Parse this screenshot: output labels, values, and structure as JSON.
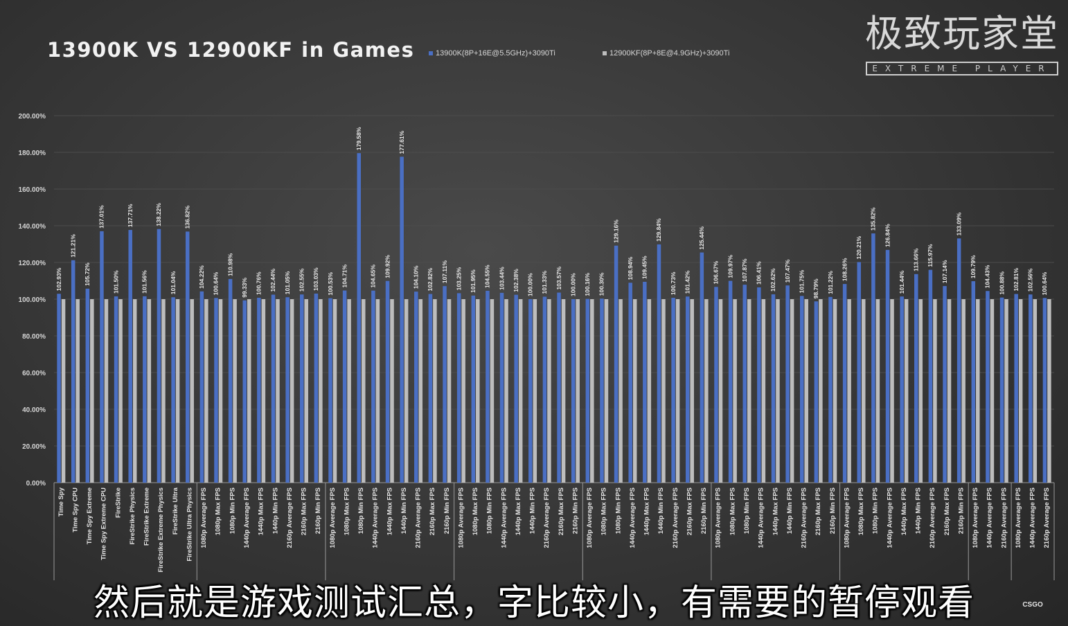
{
  "chart_data": {
    "type": "bar",
    "title": "13900K VS 12900KF in Games",
    "ylim": [
      0,
      200
    ],
    "yticks": [
      "0.00%",
      "20.00%",
      "40.00%",
      "60.00%",
      "80.00%",
      "100.00%",
      "120.00%",
      "140.00%",
      "160.00%",
      "180.00%",
      "200.00%"
    ],
    "legend_position": "top",
    "grid": true,
    "colors": {
      "primary": "#4a6fc4",
      "baseline": "#bdbdbd",
      "background": "#3a3a3a",
      "text": "#e0e0e0"
    },
    "series": [
      {
        "name": "13900K(8P+16E@5.5GHz)+3090Ti"
      },
      {
        "name": "12900KF(8P+8E@4.9GHz)+3090Ti"
      }
    ],
    "categories": [
      "Time Spy",
      "Time Spy CPU",
      "Time Spy Extreme",
      "Time Spy Extreme CPU",
      "FireStrike",
      "FireStrike Physics",
      "FireStrike Extreme",
      "FireStrike Extreme Physics",
      "FireStrike Ultra",
      "FireStrike Ultra Physics",
      "1080p Average FPS",
      "1080p Max FPS",
      "1080p Min FPS",
      "1440p Average FPS",
      "1440p Max FPS",
      "1440p Min FPS",
      "2160p Average FPS",
      "2160p Max FPS",
      "2160p Min FPS",
      "1080p Average FPS",
      "1080p Max FPS",
      "1080p Min FPS",
      "1440p Average FPS",
      "1440p Max FPS",
      "1440p Min FPS",
      "2160p Average FPS",
      "2160p Max FPS",
      "2160p Min FPS",
      "1080p Average FPS",
      "1080p Max FPS",
      "1080p Min FPS",
      "1440p Average FPS",
      "1440p Max FPS",
      "1440p Min FPS",
      "2160p Average FPS",
      "2160p Max FPS",
      "2160p Min FPS",
      "1080p Average FPS",
      "1080p Max FPS",
      "1080p Min FPS",
      "1440p Average FPS",
      "1440p Max FPS",
      "1440p Min FPS",
      "2160p Average FPS",
      "2160p Max FPS",
      "2160p Min FPS",
      "1080p Average FPS",
      "1080p Max FPS",
      "1080p Min FPS",
      "1440p Average FPS",
      "1440p Max FPS",
      "1440p Min FPS",
      "2160p Average FPS",
      "2160p Max FPS",
      "2160p Min FPS",
      "1080p Average FPS",
      "1080p Max FPS",
      "1080p Min FPS",
      "1440p Average FPS",
      "1440p Max FPS",
      "1440p Min FPS",
      "2160p Average FPS",
      "2160p Max FPS",
      "2160p Min FPS",
      "1080p Average FPS",
      "1440p Average FPS",
      "2160p Average FPS",
      "1080p Average FPS",
      "1440p Average FPS",
      "2160p Average FPS"
    ],
    "values_13900K": [
      102.93,
      121.21,
      105.72,
      137.01,
      101.5,
      137.71,
      101.56,
      138.22,
      101.04,
      136.82,
      104.22,
      100.64,
      110.98,
      99.33,
      100.76,
      102.44,
      101.05,
      102.55,
      103.03,
      100.53,
      104.71,
      179.58,
      104.65,
      109.92,
      177.61,
      104.1,
      102.82,
      107.11,
      103.25,
      101.95,
      104.55,
      103.44,
      102.38,
      100.0,
      101.33,
      103.57,
      100.0,
      100.16,
      100.3,
      129.16,
      108.94,
      109.45,
      129.84,
      100.73,
      101.42,
      125.44,
      106.67,
      109.97,
      107.87,
      106.41,
      102.62,
      107.47,
      101.75,
      98.79,
      101.22,
      108.26,
      120.21,
      135.82,
      126.84,
      101.44,
      113.66,
      115.97,
      107.14,
      133.09,
      109.79,
      104.43,
      100.88,
      102.81,
      102.56,
      100.64
    ],
    "values_12900KF": [
      100,
      100,
      100,
      100,
      100,
      100,
      100,
      100,
      100,
      100,
      100,
      100,
      100,
      100,
      100,
      100,
      100,
      100,
      100,
      100,
      100,
      100,
      100,
      100,
      100,
      100,
      100,
      100,
      100,
      100,
      100,
      100,
      100,
      100,
      100,
      100,
      100,
      100,
      100,
      100,
      100,
      100,
      100,
      100,
      100,
      100,
      100,
      100,
      100,
      100,
      100,
      100,
      100,
      100,
      100,
      100,
      100,
      100,
      100,
      100,
      100,
      100,
      100,
      100,
      100,
      100,
      100,
      100,
      100,
      100
    ],
    "data_labels": [
      "102.93%",
      "121.21%",
      "105.72%",
      "137.01%",
      "101.50%",
      "137.71%",
      "101.56%",
      "138.22%",
      "101.04%",
      "136.82%",
      "104.22%",
      "100.64%",
      "110.98%",
      "99.33%",
      "100.76%",
      "102.44%",
      "101.05%",
      "102.55%",
      "103.03%",
      "100.53%",
      "104.71%",
      "179.58%",
      "104.65%",
      "109.92%",
      "177.61%",
      "104.10%",
      "102.82%",
      "107.11%",
      "103.25%",
      "101.95%",
      "104.55%",
      "103.44%",
      "102.38%",
      "100.00%",
      "101.33%",
      "103.57%",
      "100.00%",
      "100.16%",
      "100.30%",
      "129.16%",
      "108.94%",
      "109.45%",
      "129.84%",
      "100.73%",
      "101.42%",
      "125.44%",
      "106.67%",
      "109.97%",
      "107.87%",
      "106.41%",
      "102.62%",
      "107.47%",
      "101.75%",
      "98.79%",
      "101.22%",
      "108.26%",
      "120.21%",
      "135.82%",
      "126.84%",
      "101.44%",
      "113.66%",
      "115.97%",
      "107.14%",
      "133.09%",
      "109.79%",
      "104.43%",
      "100.88%",
      "102.81%",
      "102.56%",
      "100.64%"
    ],
    "group_sizes": [
      10,
      9,
      9,
      9,
      9,
      9,
      9,
      3,
      3
    ],
    "group_labels": [
      "",
      "",
      "",
      "",
      "",
      "",
      "",
      "",
      "CSGO"
    ]
  },
  "logo": {
    "cn": "极致玩家堂",
    "en": "EXTREME PLAYER"
  },
  "subtitle": "然后就是游戏测试汇总，字比较小，有需要的暂停观看"
}
